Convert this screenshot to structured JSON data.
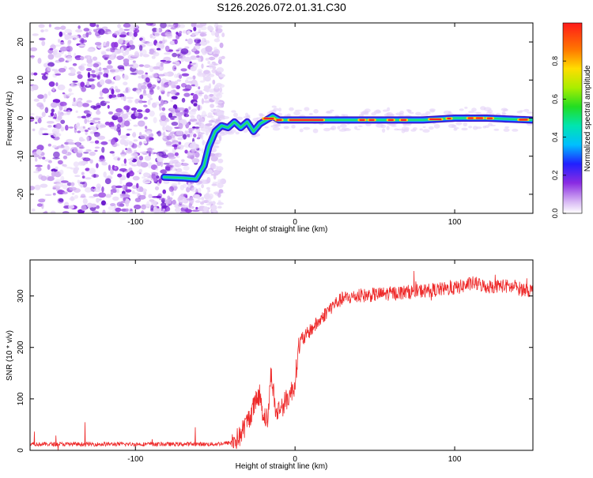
{
  "page_title": "S126.2026.072.01.31.C30",
  "chart_data": [
    {
      "type": "heatmap",
      "title": "S126.2026.072.01.31.C30",
      "xlabel": "Height of straight line (km)",
      "ylabel": "Frequency (Hz)",
      "xlim": [
        -166,
        149
      ],
      "ylim": [
        -25,
        25
      ],
      "xticks": [
        -100,
        0,
        100
      ],
      "yticks": [
        -20,
        -10,
        0,
        10,
        20
      ],
      "noise_region": {
        "x_range": [
          -166,
          -45
        ],
        "y_range": [
          -25,
          25
        ],
        "amplitude_range": [
          0.0,
          0.25
        ]
      },
      "ridge": {
        "x": [
          -82,
          -70,
          -62,
          -57,
          -54,
          -50,
          -46,
          -42,
          -38,
          -34,
          -30,
          -26,
          -22,
          -18,
          -14,
          -10,
          -5,
          0,
          20,
          40,
          60,
          80,
          100,
          120,
          148
        ],
        "y": [
          -15.5,
          -15.7,
          -16.0,
          -12.5,
          -7.5,
          -3.5,
          -2.0,
          -2.5,
          -1.0,
          -2.5,
          -1.0,
          -3.5,
          -1.5,
          -0.5,
          0.5,
          -0.5,
          -0.5,
          -0.5,
          -0.5,
          -0.5,
          -0.5,
          -0.5,
          0.0,
          0.0,
          -0.5
        ]
      },
      "colorbar": {
        "label": "Normalized spectral amplitude",
        "range": [
          0.0,
          1.0
        ],
        "ticks": [
          "0.0",
          "0.2",
          "0.4",
          "0.6",
          "0.8"
        ]
      }
    },
    {
      "type": "line",
      "xlabel": "Height of straight line (km)",
      "ylabel": "SNR (10 * v/v)",
      "xlim": [
        -166,
        149
      ],
      "ylim": [
        0,
        370
      ],
      "xticks": [
        -100,
        0,
        100
      ],
      "yticks": [
        0,
        100,
        200,
        300
      ],
      "series": [
        {
          "name": "SNR",
          "color": "#ee2a2a",
          "x": [
            -166,
            -100,
            -50,
            -40,
            -35,
            -30,
            -25,
            -22,
            -20,
            -17,
            -15,
            -12,
            -10,
            -7,
            -5,
            -3,
            0,
            2,
            5,
            10,
            15,
            20,
            25,
            30,
            40,
            60,
            80,
            100,
            112,
            120,
            130,
            149
          ],
          "y": [
            12,
            12,
            12,
            15,
            25,
            55,
            90,
            110,
            70,
            60,
            155,
            70,
            80,
            90,
            100,
            110,
            130,
            200,
            215,
            235,
            250,
            270,
            285,
            295,
            300,
            305,
            310,
            315,
            325,
            318,
            320,
            310
          ]
        }
      ]
    }
  ]
}
